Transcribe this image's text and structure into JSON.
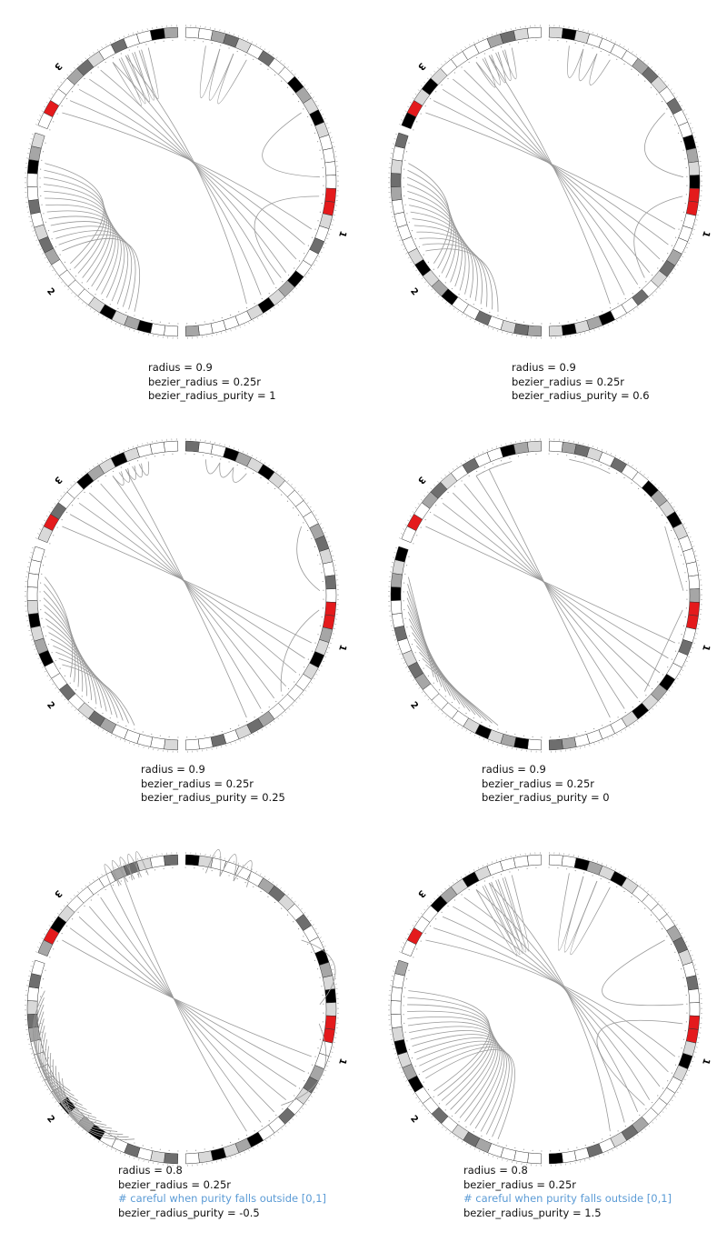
{
  "chromosome_labels": [
    "1",
    "2",
    "3"
  ],
  "ideogram_colors": {
    "band_white": "#ffffff",
    "band_light": "#d9d9d9",
    "band_mid": "#a6a6a6",
    "band_dark": "#6e6e6e",
    "band_black": "#000000",
    "centromere": "#e41a1c",
    "link_line": "#999999"
  },
  "panels": [
    {
      "id": "p1",
      "lines": [
        {
          "text": "radius = 0.9",
          "comment": false
        },
        {
          "text": "bezier_radius = 0.25r",
          "comment": false
        },
        {
          "text": "bezier_radius_purity = 1",
          "comment": false
        }
      ],
      "radius": 0.9,
      "bezier_radius": 0.25,
      "bezier_radius_purity": 1
    },
    {
      "id": "p2",
      "lines": [
        {
          "text": "radius = 0.9",
          "comment": false
        },
        {
          "text": "bezier_radius = 0.25r",
          "comment": false
        },
        {
          "text": "bezier_radius_purity = 0.6",
          "comment": false
        }
      ],
      "radius": 0.9,
      "bezier_radius": 0.25,
      "bezier_radius_purity": 0.6
    },
    {
      "id": "p3",
      "lines": [
        {
          "text": "radius = 0.9",
          "comment": false
        },
        {
          "text": "bezier_radius = 0.25r",
          "comment": false
        },
        {
          "text": "bezier_radius_purity = 0.25",
          "comment": false
        }
      ],
      "radius": 0.9,
      "bezier_radius": 0.25,
      "bezier_radius_purity": 0.25
    },
    {
      "id": "p4",
      "lines": [
        {
          "text": "radius = 0.9",
          "comment": false
        },
        {
          "text": "bezier_radius = 0.25r",
          "comment": false
        },
        {
          "text": "bezier_radius_purity = 0",
          "comment": false
        }
      ],
      "radius": 0.9,
      "bezier_radius": 0.25,
      "bezier_radius_purity": 0
    },
    {
      "id": "p5",
      "lines": [
        {
          "text": "radius = 0.8",
          "comment": false
        },
        {
          "text": "bezier_radius = 0.25r",
          "comment": false
        },
        {
          "text": "# careful when purity falls outside [0,1]",
          "comment": true
        },
        {
          "text": "bezier_radius_purity = -0.5",
          "comment": false
        }
      ],
      "radius": 0.8,
      "bezier_radius": 0.25,
      "bezier_radius_purity": -0.5
    },
    {
      "id": "p6",
      "lines": [
        {
          "text": "radius = 0.8",
          "comment": false
        },
        {
          "text": "bezier_radius = 0.25r",
          "comment": false
        },
        {
          "text": "# careful when purity falls outside [0,1]",
          "comment": true
        },
        {
          "text": "bezier_radius_purity = 1.5",
          "comment": false
        }
      ],
      "radius": 0.8,
      "bezier_radius": 0.25,
      "bezier_radius_purity": 1.5
    }
  ]
}
